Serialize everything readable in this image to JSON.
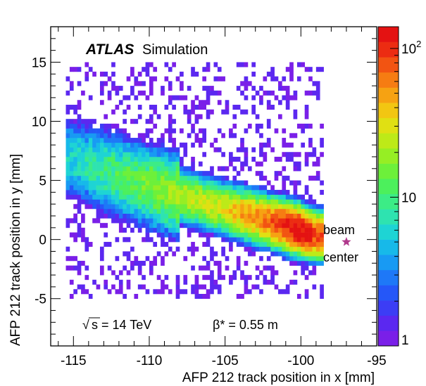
{
  "chart_data": {
    "type": "heatmap",
    "xlabel": "AFP 212 track position in x [mm]",
    "ylabel": "AFP 212 track position in y [mm]",
    "xlim": [
      -116.5,
      -95
    ],
    "ylim": [
      -9,
      18
    ],
    "x_ticks": [
      "-115",
      "-110",
      "-105",
      "-100",
      "-95"
    ],
    "y_ticks": [
      "-5",
      "0",
      "5",
      "10",
      "15"
    ],
    "z_scale": "log",
    "zlim": [
      1,
      140
    ],
    "colorbar_ticks": [
      "1",
      "10",
      "10^2"
    ],
    "grid": false,
    "occupied_region": {
      "x": [
        -115.5,
        -98.5
      ],
      "y": [
        -5,
        15
      ]
    },
    "band": {
      "description_points": [
        {
          "x": -115,
          "y": 6.8,
          "counts": 6
        },
        {
          "x": -110,
          "y": 4.5,
          "counts": 15
        },
        {
          "x": -105,
          "y": 2.6,
          "counts": 30
        },
        {
          "x": -102,
          "y": 1.5,
          "counts": 70
        },
        {
          "x": -100,
          "y": 0.8,
          "counts": 140
        },
        {
          "x": -99,
          "y": 0.3,
          "counts": 90
        }
      ]
    },
    "markers": [
      {
        "label_line1": "beam",
        "label_line2": "center",
        "x": -97,
        "y": -0.2,
        "symbol": "star",
        "color": "#b03a8c"
      }
    ],
    "annotations": {
      "experiment": "ATLAS",
      "status": "Simulation",
      "energy": "s = 14 TeV",
      "energy_root": "√",
      "beta": "β* = 0.55 m"
    }
  },
  "colors": {
    "palette": [
      "#7a1fe8",
      "#5b28f0",
      "#3c3df5",
      "#2557f8",
      "#1e78f7",
      "#189af3",
      "#17b9e9",
      "#1ed4d4",
      "#2ee3b0",
      "#3cec86",
      "#4cf05c",
      "#6df03a",
      "#96ee24",
      "#bdea18",
      "#e0e013",
      "#f2c612",
      "#f6a212",
      "#f67c12",
      "#f25412",
      "#ec2c12",
      "#e41212"
    ],
    "marker": "#b03a8c"
  }
}
